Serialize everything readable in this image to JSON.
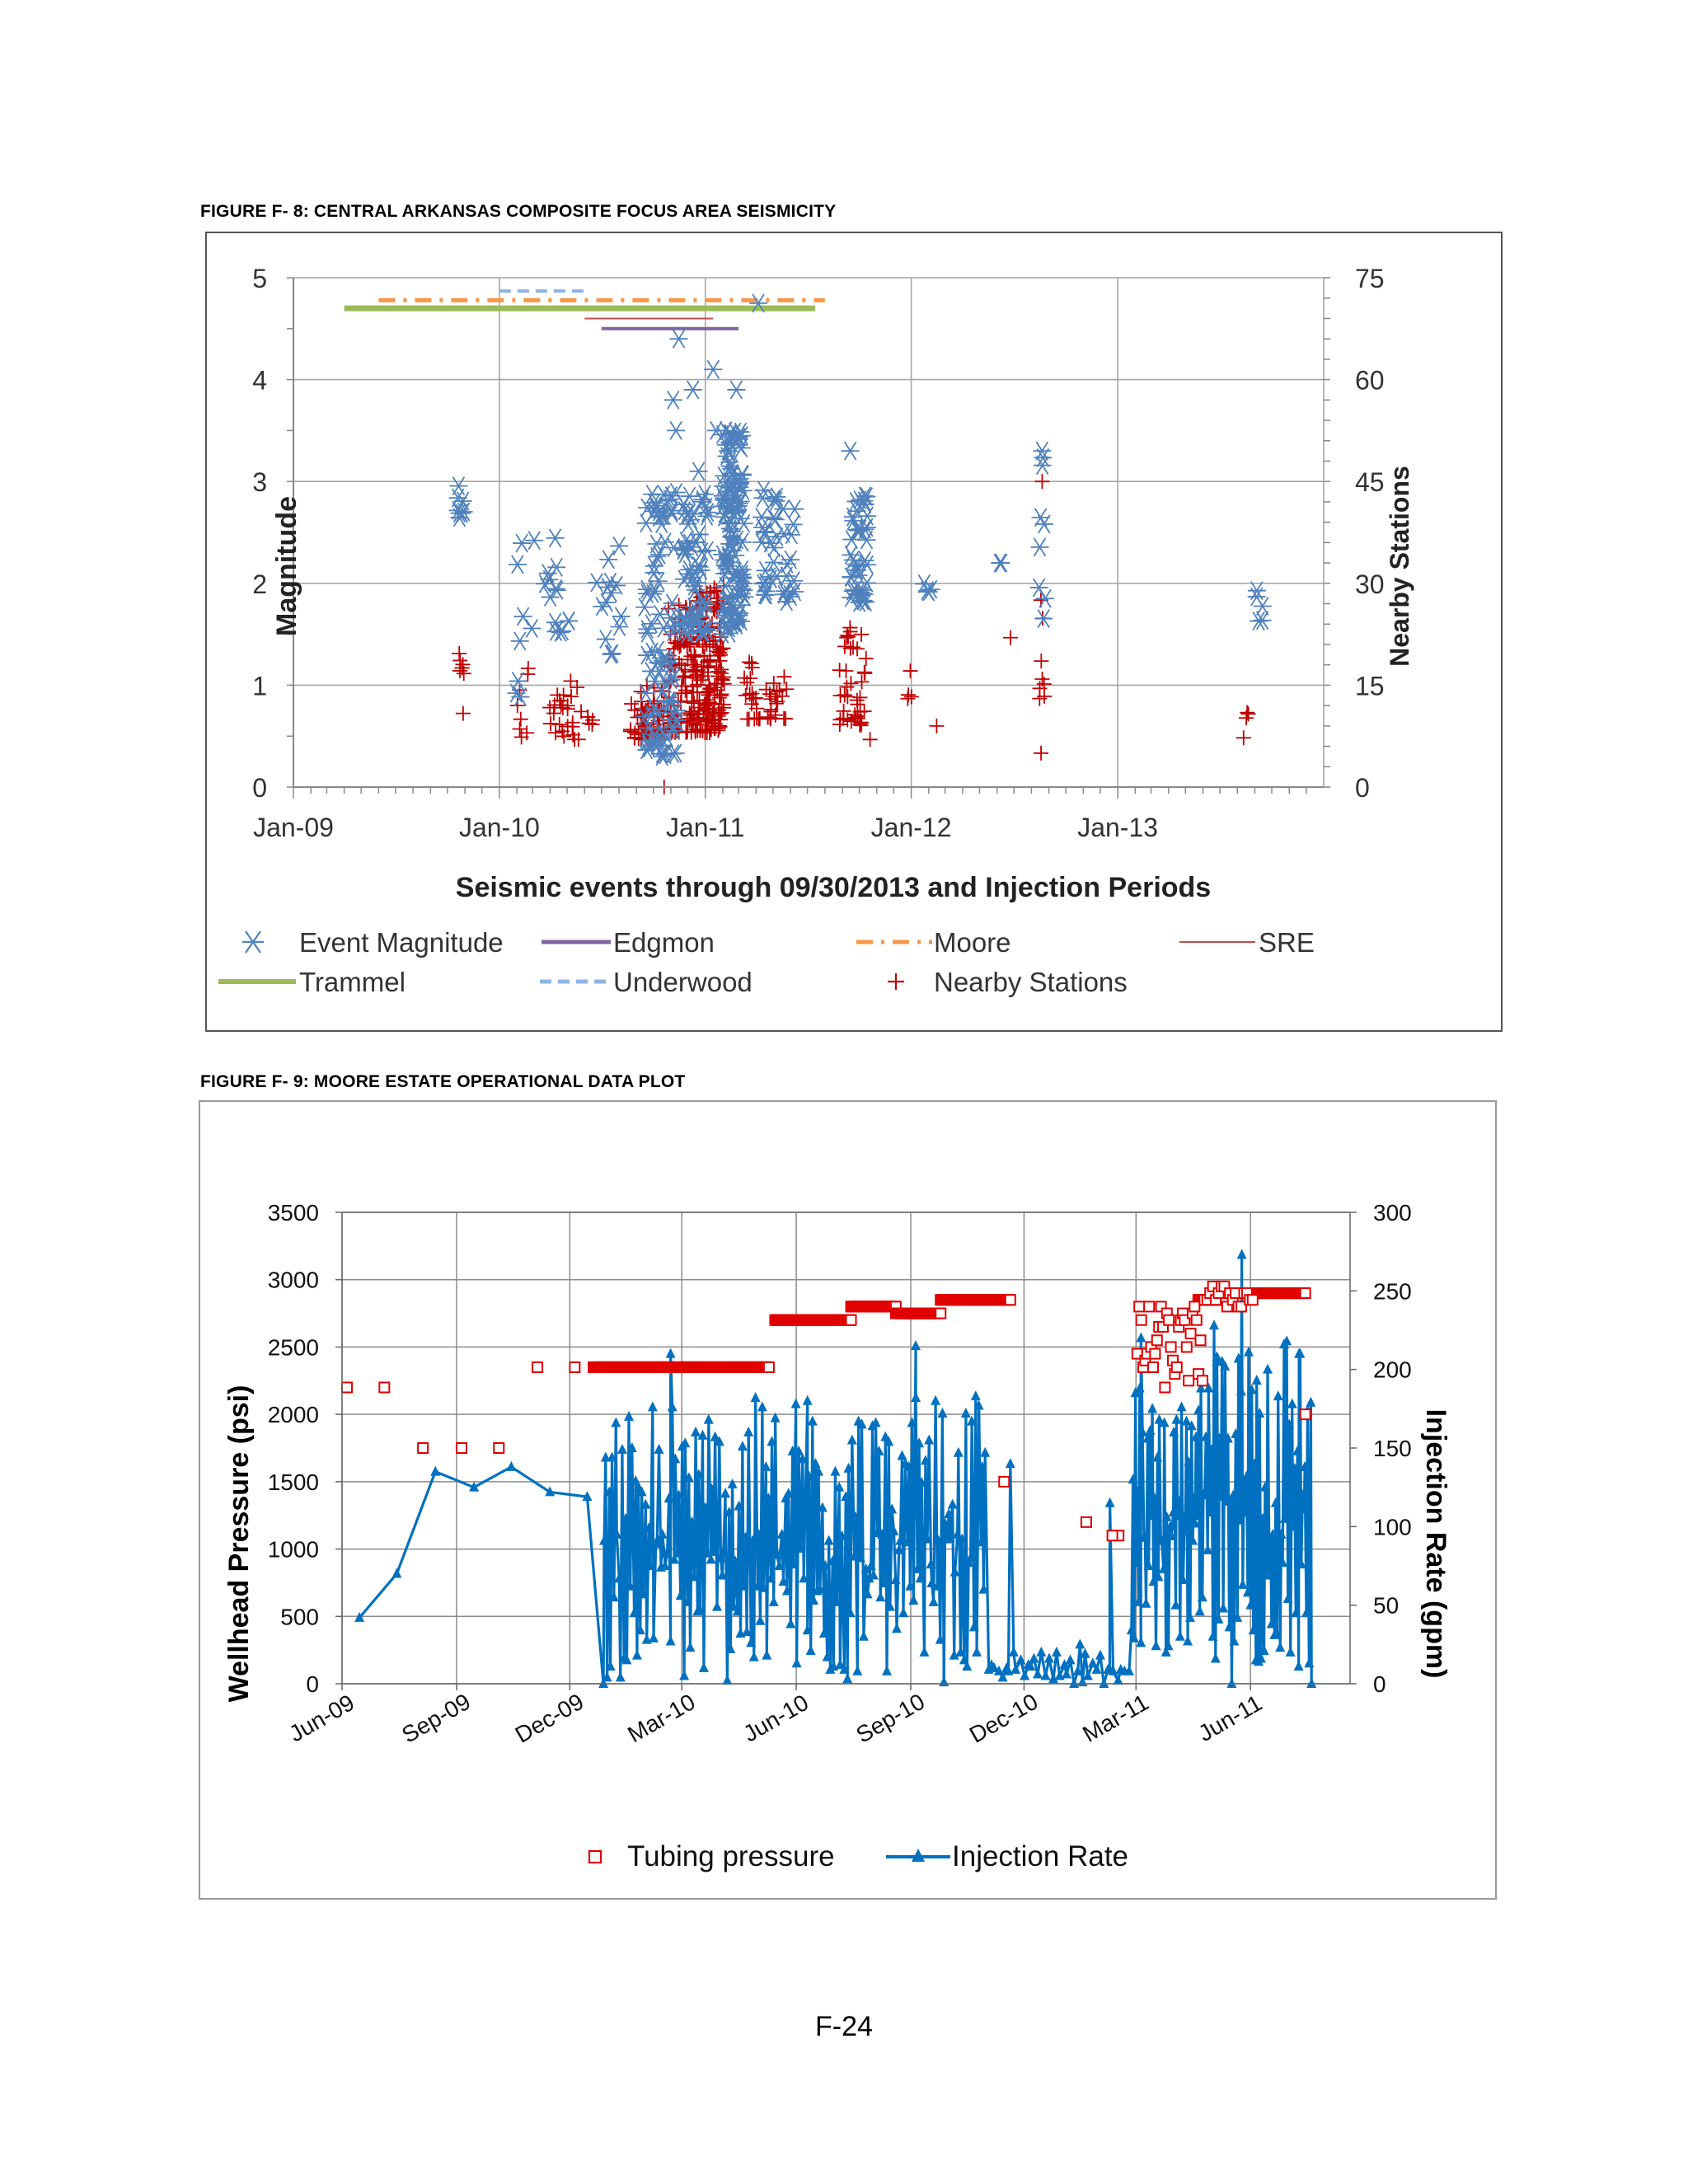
{
  "figure1": {
    "caption": "FIGURE F- 8: CENTRAL ARKANSAS COMPOSITE FOCUS AREA SEISMICITY",
    "chart_data": {
      "type": "scatter",
      "title": "",
      "xlabel": "Seismic events through 09/30/2013 and Injection Periods",
      "ylabel": "Magnitude",
      "y2label": "Nearby Stations",
      "x_ticks": [
        "Jan-09",
        "Jan-10",
        "Jan-11",
        "Jan-12",
        "Jan-13"
      ],
      "x_tick_dates": [
        "2009-01-01",
        "2010-01-01",
        "2011-01-01",
        "2012-01-01",
        "2013-01-01"
      ],
      "xlim": [
        "2009-01-01",
        "2014-01-01"
      ],
      "ylim": [
        0,
        5
      ],
      "y_ticks": [
        0,
        1,
        2,
        3,
        4,
        5
      ],
      "y2lim": [
        0,
        75
      ],
      "y2_ticks": [
        0,
        15,
        30,
        45,
        60,
        75
      ],
      "grid": true,
      "legend": "bottom",
      "legend_entries": [
        "Event Magnitude",
        "Edgmon",
        "Moore",
        "SRE",
        "Trammel",
        "Underwood",
        "Nearby Stations"
      ],
      "injection_periods": [
        {
          "name": "Trammel",
          "start": "2009-04-01",
          "end": "2011-07-15",
          "level": 4.7,
          "color": "#9bbb59"
        },
        {
          "name": "Moore",
          "start": "2009-06-01",
          "end": "2011-08-01",
          "level": 4.78,
          "color": "#f79646"
        },
        {
          "name": "Underwood",
          "start": "2010-01-01",
          "end": "2010-06-01",
          "level": 4.87,
          "color": "#8eb4e3"
        },
        {
          "name": "SRE",
          "start": "2010-06-01",
          "end": "2011-01-15",
          "level": 4.6,
          "color": "#c0504d"
        },
        {
          "name": "Edgmon",
          "start": "2010-07-01",
          "end": "2011-03-01",
          "level": 4.5,
          "color": "#8064a2"
        }
      ],
      "magnitude_clusters": [
        {
          "date": "2009-10-25",
          "spread_days": 6,
          "n": 8,
          "min": 2.4,
          "max": 3.0
        },
        {
          "date": "2010-02-05",
          "spread_days": 8,
          "n": 7,
          "min": 0.2,
          "max": 2.5
        },
        {
          "date": "2010-04-01",
          "spread_days": 35,
          "n": 16,
          "min": 1.5,
          "max": 2.5
        },
        {
          "date": "2010-07-15",
          "spread_days": 25,
          "n": 14,
          "min": 1.3,
          "max": 2.5
        },
        {
          "date": "2010-10-15",
          "spread_days": 30,
          "n": 90,
          "min": 0.3,
          "max": 3.0
        },
        {
          "date": "2010-12-15",
          "spread_days": 22,
          "n": 60,
          "min": 1.5,
          "max": 3.0
        },
        {
          "date": "2011-02-20",
          "spread_days": 20,
          "n": 120,
          "min": 1.5,
          "max": 3.5
        },
        {
          "date": "2011-05-10",
          "spread_days": 30,
          "n": 40,
          "min": 1.8,
          "max": 3.0
        },
        {
          "date": "2011-10-01",
          "spread_days": 15,
          "n": 40,
          "min": 1.8,
          "max": 2.9
        },
        {
          "date": "2012-02-01",
          "spread_days": 10,
          "n": 4,
          "min": 1.9,
          "max": 2.0
        },
        {
          "date": "2012-06-10",
          "spread_days": 5,
          "n": 2,
          "min": 2.2,
          "max": 2.2
        },
        {
          "date": "2012-08-20",
          "spread_days": 6,
          "n": 8,
          "min": 1.5,
          "max": 3.3
        },
        {
          "date": "2013-09-10",
          "spread_days": 6,
          "n": 5,
          "min": 1.6,
          "max": 2.1
        }
      ],
      "magnitude_points": [
        {
          "date": "2010-11-15",
          "mag": 4.4
        },
        {
          "date": "2011-01-15",
          "mag": 4.1
        },
        {
          "date": "2011-02-25",
          "mag": 3.9
        },
        {
          "date": "2010-12-10",
          "mag": 3.9
        },
        {
          "date": "2010-11-05",
          "mag": 3.8
        },
        {
          "date": "2010-11-10",
          "mag": 3.5
        },
        {
          "date": "2011-04-05",
          "mag": 4.75
        },
        {
          "date": "2011-09-15",
          "mag": 3.3
        },
        {
          "date": "2012-08-20",
          "mag": 3.3
        },
        {
          "date": "2011-01-20",
          "mag": 3.5
        },
        {
          "date": "2010-12-20",
          "mag": 3.1
        },
        {
          "date": "2011-02-10",
          "mag": 3.3
        }
      ],
      "station_clusters": [
        {
          "date": "2009-10-25",
          "spread_days": 5,
          "n": 7,
          "min": 10,
          "max": 24
        },
        {
          "date": "2010-02-10",
          "spread_days": 15,
          "n": 8,
          "min": 7,
          "max": 19
        },
        {
          "date": "2010-05-10",
          "spread_days": 40,
          "n": 30,
          "min": 7,
          "max": 16
        },
        {
          "date": "2010-09-20",
          "spread_days": 30,
          "n": 60,
          "min": 7,
          "max": 15
        },
        {
          "date": "2010-11-20",
          "spread_days": 25,
          "n": 90,
          "min": 8,
          "max": 27
        },
        {
          "date": "2011-01-10",
          "spread_days": 25,
          "n": 160,
          "min": 8,
          "max": 30
        },
        {
          "date": "2011-04-20",
          "spread_days": 40,
          "n": 40,
          "min": 10,
          "max": 20
        },
        {
          "date": "2011-09-20",
          "spread_days": 25,
          "n": 40,
          "min": 9,
          "max": 24
        },
        {
          "date": "2012-01-01",
          "spread_days": 8,
          "n": 4,
          "min": 13,
          "max": 22
        },
        {
          "date": "2012-08-20",
          "spread_days": 5,
          "n": 8,
          "min": 13,
          "max": 36
        },
        {
          "date": "2013-08-15",
          "spread_days": 6,
          "n": 4,
          "min": 6,
          "max": 11
        }
      ],
      "station_points": [
        {
          "date": "2010-10-20",
          "value": 0
        },
        {
          "date": "2012-08-20",
          "value": 45
        },
        {
          "date": "2012-08-18",
          "value": 5
        },
        {
          "date": "2012-02-15",
          "value": 9
        },
        {
          "date": "2012-06-25",
          "value": 22
        },
        {
          "date": "2011-10-20",
          "value": 7
        }
      ]
    },
    "legend_labels": {
      "event_magnitude": "Event Magnitude",
      "edgmon": "Edgmon",
      "moore": "Moore",
      "sre": "SRE",
      "trammel": "Trammel",
      "underwood": "Underwood",
      "nearby_stations": "Nearby Stations"
    },
    "colors": {
      "magnitude": "#4f81bd",
      "stations": "#c00000",
      "grid": "#a6a6a6"
    }
  },
  "figure2": {
    "caption": "FIGURE F- 9: MOORE ESTATE OPERATIONAL DATA PLOT",
    "chart_data": {
      "type": "line",
      "title": "",
      "xlabel": "",
      "ylabel": "Wellhead Pressure (psi)",
      "y2label": "Injection Rate (gpm)",
      "x_ticks": [
        "Jun-09",
        "Sep-09",
        "Dec-09",
        "Mar-10",
        "Jun-10",
        "Sep-10",
        "Dec-10",
        "Mar-11",
        "Jun-11"
      ],
      "x_tick_dates": [
        "2009-06-01",
        "2009-09-01",
        "2009-12-01",
        "2010-03-01",
        "2010-06-01",
        "2010-09-01",
        "2010-12-01",
        "2011-03-01",
        "2011-06-01"
      ],
      "xlim": [
        "2009-06-01",
        "2011-08-20"
      ],
      "ylim": [
        0,
        3500
      ],
      "y_ticks": [
        0,
        500,
        1000,
        1500,
        2000,
        2500,
        3000,
        3500
      ],
      "y2lim": [
        0,
        300
      ],
      "y2_ticks": [
        0,
        50,
        100,
        150,
        200,
        250,
        300
      ],
      "grid": true,
      "legend": "bottom",
      "series": [
        {
          "name": "Tubing pressure",
          "kind": "markers",
          "color": "#e00000",
          "points": [
            [
              "2009-06-05",
              2200
            ],
            [
              "2009-07-05",
              2200
            ],
            [
              "2009-08-05",
              1750
            ],
            [
              "2009-09-05",
              1750
            ],
            [
              "2009-10-05",
              1750
            ],
            [
              "2009-11-05",
              2350
            ],
            [
              "2009-12-05",
              2350
            ],
            [
              "2011-02-15",
              1100
            ],
            [
              "2011-02-10",
              1100
            ],
            [
              "2011-01-20",
              1200
            ],
            [
              "2010-11-15",
              1500
            ],
            [
              "2011-07-15",
              2000
            ]
          ],
          "dense_segments": [
            {
              "start": "2009-12-20",
              "end": "2010-05-10",
              "value": 2350
            },
            {
              "start": "2010-05-15",
              "end": "2010-07-15",
              "value": 2700
            },
            {
              "start": "2010-07-15",
              "end": "2010-08-20",
              "value": 2800
            },
            {
              "start": "2010-08-20",
              "end": "2010-09-25",
              "value": 2750
            },
            {
              "start": "2010-09-25",
              "end": "2010-11-20",
              "value": 2850
            },
            {
              "start": "2011-04-20",
              "end": "2011-05-10",
              "value": 2850
            },
            {
              "start": "2011-05-10",
              "end": "2011-07-15",
              "value": 2900
            }
          ],
          "scatter_clusters": [
            {
              "start": "2011-03-02",
              "end": "2011-04-25",
              "n": 34,
              "min": 2200,
              "max": 2800
            },
            {
              "start": "2011-04-25",
              "end": "2011-06-05",
              "n": 18,
              "min": 2800,
              "max": 2950
            }
          ]
        },
        {
          "name": "Injection Rate",
          "kind": "line-triangles",
          "color": "#0070c0",
          "points": [
            [
              "2009-06-15",
              42
            ],
            [
              "2009-07-15",
              70
            ],
            [
              "2009-08-15",
              135
            ],
            [
              "2009-09-15",
              125
            ],
            [
              "2009-10-15",
              138
            ],
            [
              "2009-11-15",
              122
            ],
            [
              "2009-12-15",
              119
            ],
            [
              "2009-12-28",
              0
            ]
          ],
          "oscillating_segments": [
            {
              "start": "2009-12-28",
              "end": "2010-11-01",
              "n": 230,
              "min": 0,
              "max": 215
            },
            {
              "start": "2010-11-01",
              "end": "2011-02-25",
              "n": 40,
              "min": 0,
              "max": 25
            },
            {
              "start": "2011-02-25",
              "end": "2011-04-25",
              "n": 60,
              "min": 20,
              "max": 220
            },
            {
              "start": "2011-04-25",
              "end": "2011-07-20",
              "n": 80,
              "min": 0,
              "max": 273
            }
          ],
          "peaks": [
            [
              "2010-02-20",
              210
            ],
            [
              "2010-06-10",
              180
            ],
            [
              "2010-09-05",
              215
            ],
            [
              "2010-11-20",
              140
            ],
            [
              "2011-03-05",
              220
            ],
            [
              "2011-05-05",
              205
            ],
            [
              "2011-05-25",
              273
            ],
            [
              "2011-07-10",
              210
            ],
            [
              "2011-01-15",
              25
            ],
            [
              "2011-02-08",
              115
            ],
            [
              "2011-07-20",
              0
            ]
          ]
        }
      ]
    },
    "legend_labels": {
      "tubing_pressure": "Tubing pressure",
      "injection_rate": "Injection Rate"
    },
    "colors": {
      "pressure": "#e00000",
      "rate": "#0070c0",
      "grid": "#8c8c8c"
    }
  },
  "page_number": "F-24"
}
